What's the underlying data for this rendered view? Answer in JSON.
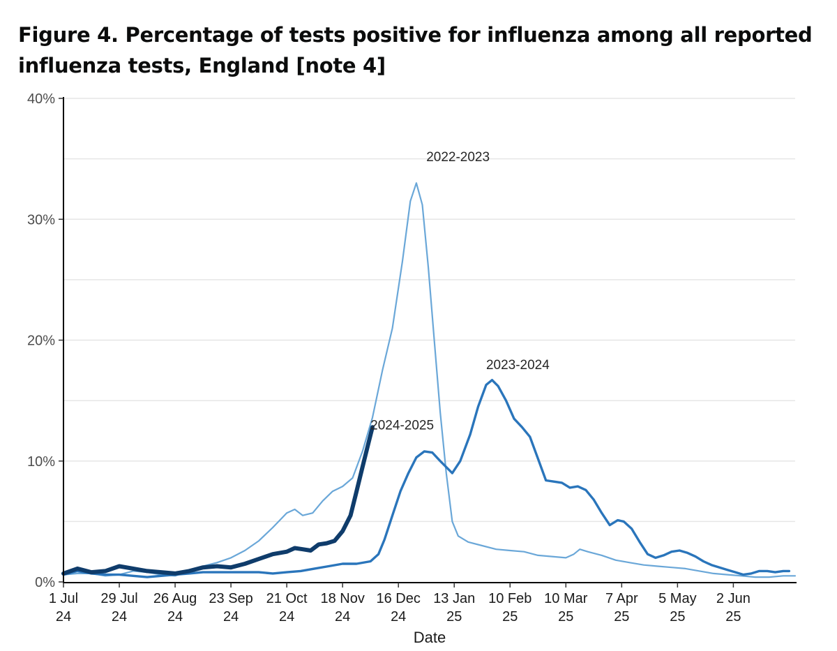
{
  "page": {
    "title": "Figure 4. Percentage of tests positive for influenza among all reported influenza tests, England [note 4]"
  },
  "chart_data": {
    "type": "line",
    "title": "Figure 4. Percentage of tests positive for influenza among all reported influenza tests, England [note 4]",
    "xlabel": "Date",
    "ylabel": "",
    "x_unit": "days since 1 Jul",
    "xlim": [
      0,
      367
    ],
    "ylim": [
      0,
      40
    ],
    "grid": true,
    "legend": "none (direct labels on lines)",
    "yticks": [
      {
        "value": 0,
        "label": "0%"
      },
      {
        "value": 10,
        "label": "10%"
      },
      {
        "value": 20,
        "label": "20%"
      },
      {
        "value": 30,
        "label": "30%"
      },
      {
        "value": 40,
        "label": "40%"
      }
    ],
    "xticks": [
      {
        "value": 0,
        "line1": "1 Jul",
        "line2": "24"
      },
      {
        "value": 28,
        "line1": "29 Jul",
        "line2": "24"
      },
      {
        "value": 56,
        "line1": "26 Aug",
        "line2": "24"
      },
      {
        "value": 84,
        "line1": "23 Sep",
        "line2": "24"
      },
      {
        "value": 112,
        "line1": "21 Oct",
        "line2": "24"
      },
      {
        "value": 140,
        "line1": "18 Nov",
        "line2": "24"
      },
      {
        "value": 168,
        "line1": "16 Dec",
        "line2": "24"
      },
      {
        "value": 196,
        "line1": "13 Jan",
        "line2": "25"
      },
      {
        "value": 224,
        "line1": "10 Feb",
        "line2": "25"
      },
      {
        "value": 252,
        "line1": "10 Mar",
        "line2": "25"
      },
      {
        "value": 280,
        "line1": "7 Apr",
        "line2": "25"
      },
      {
        "value": 308,
        "line1": "5 May",
        "line2": "25"
      },
      {
        "value": 336,
        "line1": "2 Jun",
        "line2": "25"
      }
    ],
    "series": [
      {
        "name": "2022-2023",
        "color": "#6aa7d8",
        "stroke": "thin",
        "label_at": {
          "x": 182,
          "y": 34.8
        },
        "points": [
          [
            0,
            0.6
          ],
          [
            7,
            0.7
          ],
          [
            14,
            0.7
          ],
          [
            21,
            0.5
          ],
          [
            28,
            0.6
          ],
          [
            35,
            0.9
          ],
          [
            42,
            0.8
          ],
          [
            49,
            0.6
          ],
          [
            56,
            0.5
          ],
          [
            63,
            0.9
          ],
          [
            70,
            1.3
          ],
          [
            77,
            1.6
          ],
          [
            84,
            2.0
          ],
          [
            91,
            2.6
          ],
          [
            98,
            3.4
          ],
          [
            105,
            4.5
          ],
          [
            112,
            5.7
          ],
          [
            116,
            6.0
          ],
          [
            120,
            5.5
          ],
          [
            125,
            5.7
          ],
          [
            130,
            6.7
          ],
          [
            135,
            7.5
          ],
          [
            140,
            7.9
          ],
          [
            145,
            8.6
          ],
          [
            150,
            10.8
          ],
          [
            155,
            13.6
          ],
          [
            160,
            17.5
          ],
          [
            165,
            21.0
          ],
          [
            170,
            26.5
          ],
          [
            174,
            31.5
          ],
          [
            177,
            33.0
          ],
          [
            180,
            31.2
          ],
          [
            183,
            26.0
          ],
          [
            186,
            20.0
          ],
          [
            189,
            14.0
          ],
          [
            192,
            9.0
          ],
          [
            195,
            5.0
          ],
          [
            198,
            3.8
          ],
          [
            203,
            3.3
          ],
          [
            210,
            3.0
          ],
          [
            217,
            2.7
          ],
          [
            224,
            2.6
          ],
          [
            231,
            2.5
          ],
          [
            238,
            2.2
          ],
          [
            245,
            2.1
          ],
          [
            252,
            2.0
          ],
          [
            256,
            2.3
          ],
          [
            259,
            2.7
          ],
          [
            263,
            2.5
          ],
          [
            270,
            2.2
          ],
          [
            277,
            1.8
          ],
          [
            284,
            1.6
          ],
          [
            291,
            1.4
          ],
          [
            298,
            1.3
          ],
          [
            305,
            1.2
          ],
          [
            312,
            1.1
          ],
          [
            319,
            0.9
          ],
          [
            326,
            0.7
          ],
          [
            333,
            0.6
          ],
          [
            340,
            0.5
          ],
          [
            347,
            0.4
          ],
          [
            354,
            0.4
          ],
          [
            361,
            0.5
          ],
          [
            367,
            0.5
          ]
        ]
      },
      {
        "name": "2023-2024",
        "color": "#2a75bb",
        "stroke": "medium",
        "label_at": {
          "x": 212,
          "y": 17.6
        },
        "points": [
          [
            0,
            0.6
          ],
          [
            7,
            0.9
          ],
          [
            14,
            0.7
          ],
          [
            21,
            0.6
          ],
          [
            28,
            0.6
          ],
          [
            35,
            0.5
          ],
          [
            42,
            0.4
          ],
          [
            49,
            0.5
          ],
          [
            56,
            0.6
          ],
          [
            63,
            0.7
          ],
          [
            70,
            0.8
          ],
          [
            77,
            0.8
          ],
          [
            84,
            0.8
          ],
          [
            91,
            0.8
          ],
          [
            98,
            0.8
          ],
          [
            105,
            0.7
          ],
          [
            112,
            0.8
          ],
          [
            119,
            0.9
          ],
          [
            126,
            1.1
          ],
          [
            133,
            1.3
          ],
          [
            140,
            1.5
          ],
          [
            147,
            1.5
          ],
          [
            154,
            1.7
          ],
          [
            158,
            2.3
          ],
          [
            161,
            3.5
          ],
          [
            165,
            5.5
          ],
          [
            169,
            7.5
          ],
          [
            173,
            9.0
          ],
          [
            177,
            10.3
          ],
          [
            181,
            10.8
          ],
          [
            185,
            10.7
          ],
          [
            189,
            10.0
          ],
          [
            192,
            9.5
          ],
          [
            195,
            9.0
          ],
          [
            199,
            10.0
          ],
          [
            204,
            12.2
          ],
          [
            208,
            14.5
          ],
          [
            212,
            16.3
          ],
          [
            215,
            16.7
          ],
          [
            218,
            16.2
          ],
          [
            222,
            15.0
          ],
          [
            226,
            13.5
          ],
          [
            230,
            12.8
          ],
          [
            234,
            12.0
          ],
          [
            238,
            10.2
          ],
          [
            242,
            8.4
          ],
          [
            246,
            8.3
          ],
          [
            250,
            8.2
          ],
          [
            254,
            7.8
          ],
          [
            258,
            7.9
          ],
          [
            262,
            7.6
          ],
          [
            266,
            6.8
          ],
          [
            270,
            5.7
          ],
          [
            274,
            4.7
          ],
          [
            278,
            5.1
          ],
          [
            281,
            5.0
          ],
          [
            285,
            4.4
          ],
          [
            289,
            3.3
          ],
          [
            293,
            2.3
          ],
          [
            297,
            2.0
          ],
          [
            301,
            2.2
          ],
          [
            305,
            2.5
          ],
          [
            309,
            2.6
          ],
          [
            313,
            2.4
          ],
          [
            317,
            2.1
          ],
          [
            321,
            1.7
          ],
          [
            325,
            1.4
          ],
          [
            329,
            1.2
          ],
          [
            333,
            1.0
          ],
          [
            337,
            0.8
          ],
          [
            341,
            0.6
          ],
          [
            345,
            0.7
          ],
          [
            349,
            0.9
          ],
          [
            353,
            0.9
          ],
          [
            357,
            0.8
          ],
          [
            361,
            0.9
          ],
          [
            364,
            0.9
          ]
        ]
      },
      {
        "name": "2024-2025",
        "color": "#0f3c6b",
        "stroke": "thick",
        "label_at": {
          "x": 154,
          "y": 12.6
        },
        "points": [
          [
            0,
            0.7
          ],
          [
            7,
            1.1
          ],
          [
            14,
            0.8
          ],
          [
            21,
            0.9
          ],
          [
            28,
            1.3
          ],
          [
            35,
            1.1
          ],
          [
            42,
            0.9
          ],
          [
            49,
            0.8
          ],
          [
            56,
            0.7
          ],
          [
            63,
            0.9
          ],
          [
            70,
            1.2
          ],
          [
            77,
            1.3
          ],
          [
            84,
            1.2
          ],
          [
            91,
            1.5
          ],
          [
            98,
            1.9
          ],
          [
            105,
            2.3
          ],
          [
            112,
            2.5
          ],
          [
            116,
            2.8
          ],
          [
            120,
            2.7
          ],
          [
            124,
            2.6
          ],
          [
            128,
            3.1
          ],
          [
            132,
            3.2
          ],
          [
            136,
            3.4
          ],
          [
            140,
            4.2
          ],
          [
            144,
            5.5
          ],
          [
            147,
            7.5
          ],
          [
            150,
            9.5
          ],
          [
            153,
            11.5
          ],
          [
            155,
            12.8
          ]
        ]
      }
    ]
  }
}
